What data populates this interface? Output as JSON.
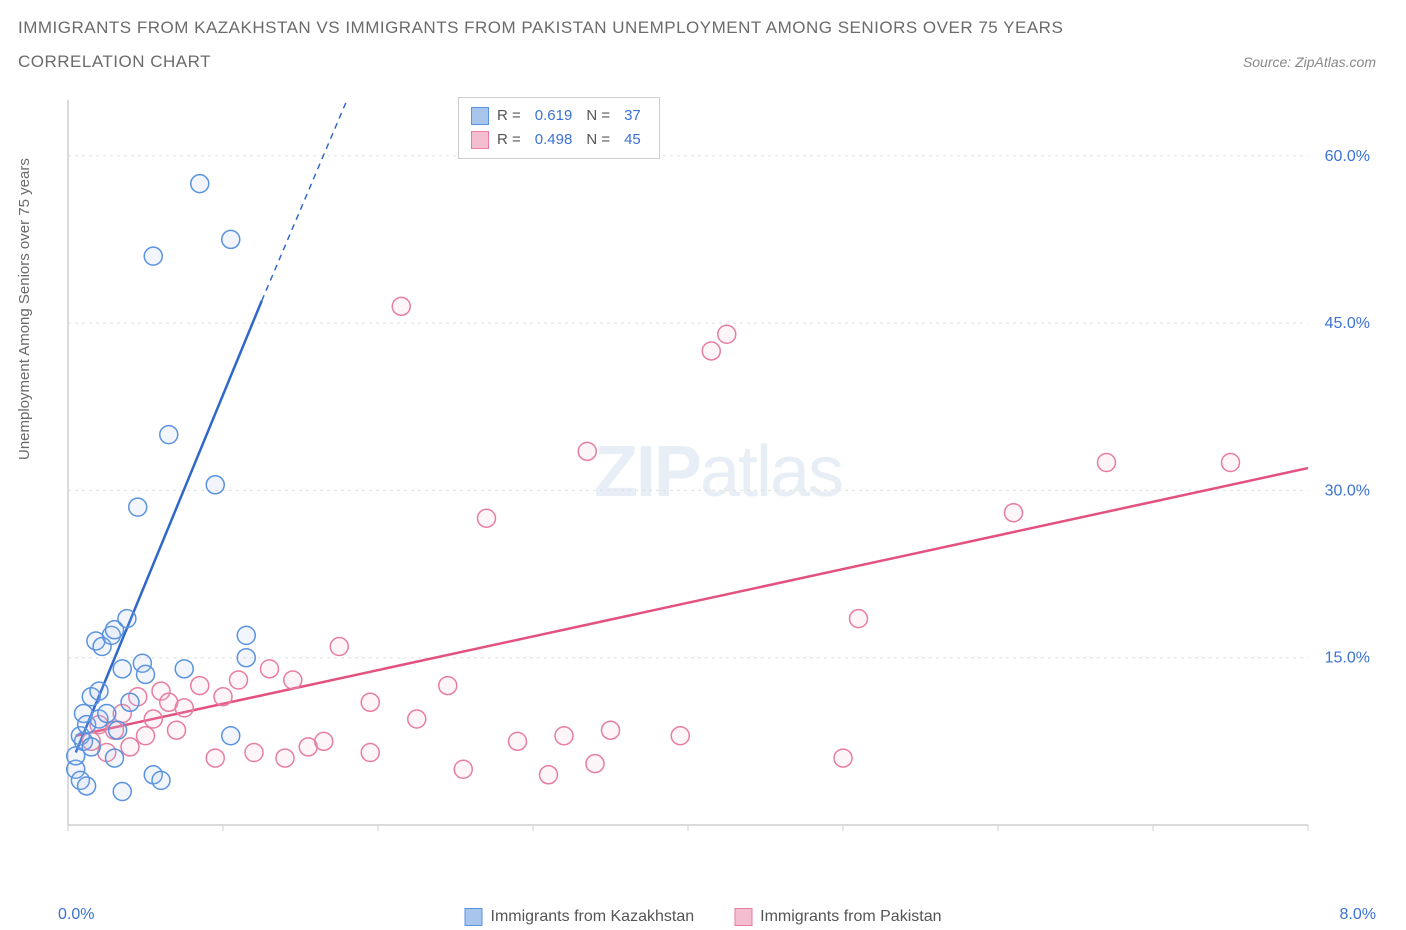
{
  "title_line1": "IMMIGRANTS FROM KAZAKHSTAN VS IMMIGRANTS FROM PAKISTAN UNEMPLOYMENT AMONG SENIORS OVER 75 YEARS",
  "title_line2": "CORRELATION CHART",
  "source_label": "Source: ZipAtlas.com",
  "y_axis_label": "Unemployment Among Seniors over 75 years",
  "watermark_bold": "ZIP",
  "watermark_light": "atlas",
  "chart": {
    "type": "scatter",
    "background_color": "#ffffff",
    "grid_color": "#e0e0e0",
    "axis_color": "#cfcfcf",
    "xlim": [
      0.0,
      8.0
    ],
    "ylim": [
      0.0,
      65.0
    ],
    "x_ticks": [
      0.0,
      1.0,
      2.0,
      3.0,
      4.0,
      5.0,
      6.0,
      7.0,
      8.0
    ],
    "x_tick_labels_shown": {
      "0": "0.0%",
      "8": "8.0%"
    },
    "y_ticks": [
      15.0,
      30.0,
      45.0,
      60.0
    ],
    "y_tick_labels": [
      "15.0%",
      "30.0%",
      "45.0%",
      "60.0%"
    ],
    "marker_radius": 9,
    "marker_stroke_width": 1.5,
    "marker_fill_opacity": 0.15,
    "trend_line_width": 2.5,
    "trend_dash_pattern": "6,5"
  },
  "series": {
    "kazakhstan": {
      "label": "Immigrants from Kazakhstan",
      "color_stroke": "#5a93e0",
      "color_fill": "#a8c5ec",
      "trend_color": "#2f68c9",
      "R": "0.619",
      "N": "37",
      "trend_p1": [
        0.05,
        6.5
      ],
      "trend_p2_solid": [
        1.25,
        47.0
      ],
      "trend_p2_dash": [
        1.8,
        65.0
      ],
      "points": [
        [
          0.05,
          5.0
        ],
        [
          0.05,
          6.2
        ],
        [
          0.08,
          4.0
        ],
        [
          0.08,
          8.0
        ],
        [
          0.1,
          7.5
        ],
        [
          0.1,
          10.0
        ],
        [
          0.12,
          9.0
        ],
        [
          0.15,
          11.5
        ],
        [
          0.15,
          7.0
        ],
        [
          0.18,
          16.5
        ],
        [
          0.2,
          9.5
        ],
        [
          0.2,
          12.0
        ],
        [
          0.22,
          16.0
        ],
        [
          0.25,
          10.0
        ],
        [
          0.28,
          17.0
        ],
        [
          0.3,
          17.5
        ],
        [
          0.32,
          8.5
        ],
        [
          0.35,
          3.0
        ],
        [
          0.35,
          14.0
        ],
        [
          0.38,
          18.5
        ],
        [
          0.4,
          11.0
        ],
        [
          0.45,
          28.5
        ],
        [
          0.48,
          14.5
        ],
        [
          0.5,
          13.5
        ],
        [
          0.55,
          4.5
        ],
        [
          0.55,
          51.0
        ],
        [
          0.6,
          4.0
        ],
        [
          0.65,
          35.0
        ],
        [
          0.75,
          14.0
        ],
        [
          0.85,
          57.5
        ],
        [
          0.95,
          30.5
        ],
        [
          1.05,
          52.5
        ],
        [
          1.05,
          8.0
        ],
        [
          1.15,
          15.0
        ],
        [
          1.15,
          17.0
        ],
        [
          0.3,
          6.0
        ],
        [
          0.12,
          3.5
        ]
      ]
    },
    "pakistan": {
      "label": "Immigrants from Pakistan",
      "color_stroke": "#e87da0",
      "color_fill": "#f4bdd0",
      "trend_color": "#e3527f",
      "R": "0.498",
      "N": "45",
      "trend_p1": [
        0.05,
        8.0
      ],
      "trend_p2": [
        8.0,
        32.0
      ],
      "points": [
        [
          0.15,
          7.5
        ],
        [
          0.2,
          9.0
        ],
        [
          0.25,
          6.5
        ],
        [
          0.3,
          8.5
        ],
        [
          0.35,
          10.0
        ],
        [
          0.4,
          7.0
        ],
        [
          0.45,
          11.5
        ],
        [
          0.5,
          8.0
        ],
        [
          0.55,
          9.5
        ],
        [
          0.6,
          12.0
        ],
        [
          0.65,
          11.0
        ],
        [
          0.75,
          10.5
        ],
        [
          0.85,
          12.5
        ],
        [
          0.95,
          6.0
        ],
        [
          1.0,
          11.5
        ],
        [
          1.1,
          13.0
        ],
        [
          1.2,
          6.5
        ],
        [
          1.3,
          14.0
        ],
        [
          1.4,
          6.0
        ],
        [
          1.45,
          13.0
        ],
        [
          1.55,
          7.0
        ],
        [
          1.65,
          7.5
        ],
        [
          1.75,
          16.0
        ],
        [
          1.95,
          6.5
        ],
        [
          1.95,
          11.0
        ],
        [
          2.15,
          46.5
        ],
        [
          2.25,
          9.5
        ],
        [
          2.45,
          12.5
        ],
        [
          2.55,
          5.0
        ],
        [
          2.7,
          27.5
        ],
        [
          2.9,
          7.5
        ],
        [
          3.1,
          4.5
        ],
        [
          3.2,
          8.0
        ],
        [
          3.35,
          33.5
        ],
        [
          3.4,
          5.5
        ],
        [
          3.5,
          8.5
        ],
        [
          3.95,
          8.0
        ],
        [
          4.15,
          42.5
        ],
        [
          4.25,
          44.0
        ],
        [
          5.0,
          6.0
        ],
        [
          5.1,
          18.5
        ],
        [
          6.1,
          28.0
        ],
        [
          6.7,
          32.5
        ],
        [
          7.5,
          32.5
        ],
        [
          0.7,
          8.5
        ]
      ]
    }
  },
  "legend_stats_label_R": "R  =",
  "legend_stats_label_N": "N  ="
}
